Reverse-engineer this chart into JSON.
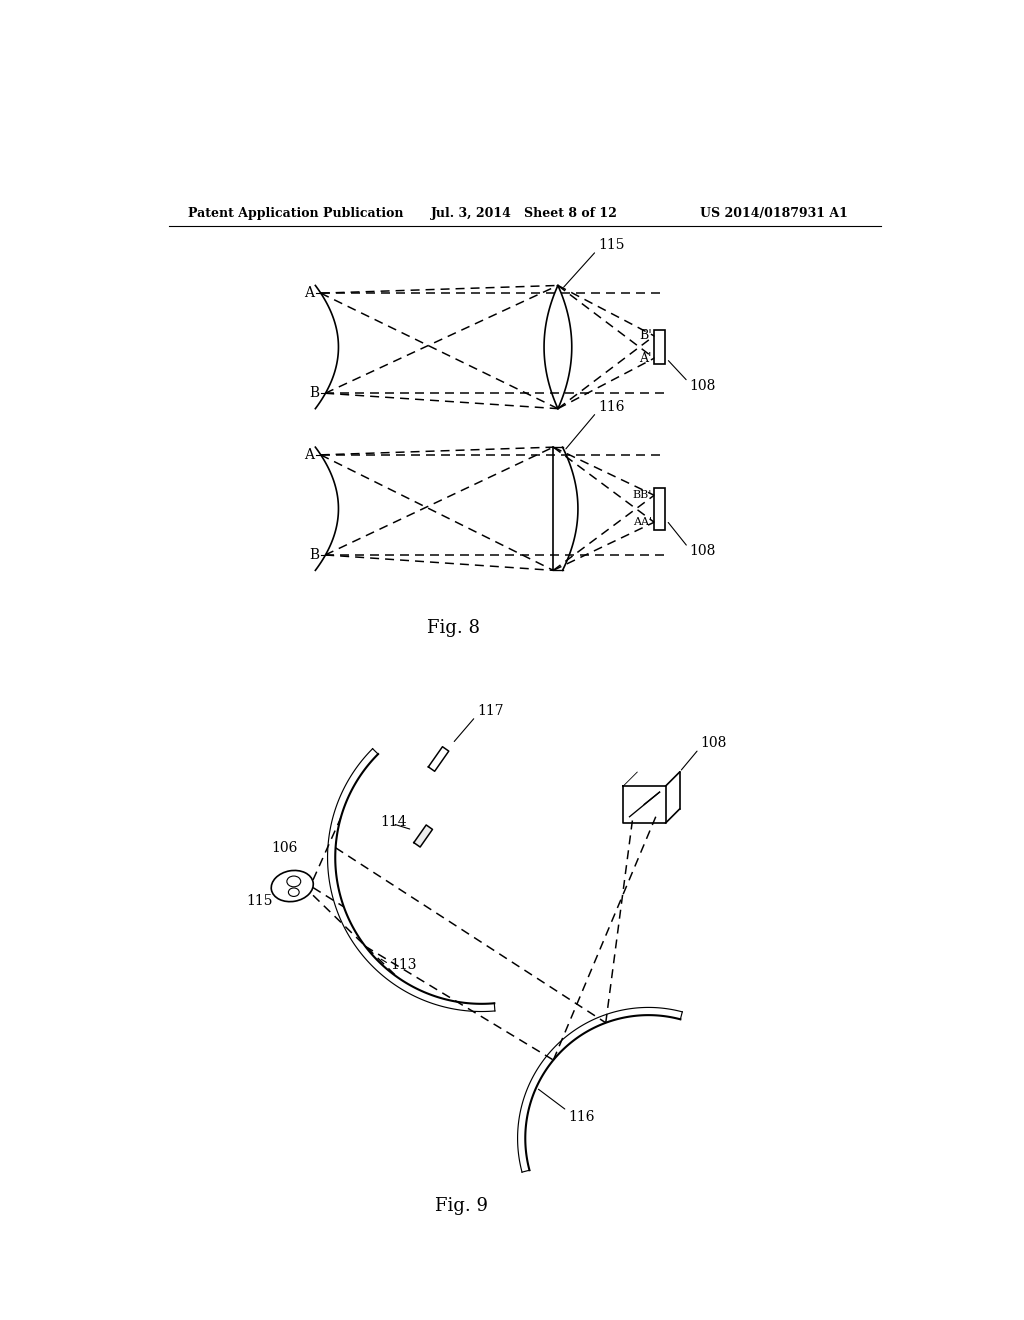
{
  "bg_color": "#ffffff",
  "header_left": "Patent Application Publication",
  "header_mid": "Jul. 3, 2014   Sheet 8 of 12",
  "header_right": "US 2014/0187931 A1",
  "fig8_label": "Fig. 8",
  "fig9_label": "Fig. 9"
}
